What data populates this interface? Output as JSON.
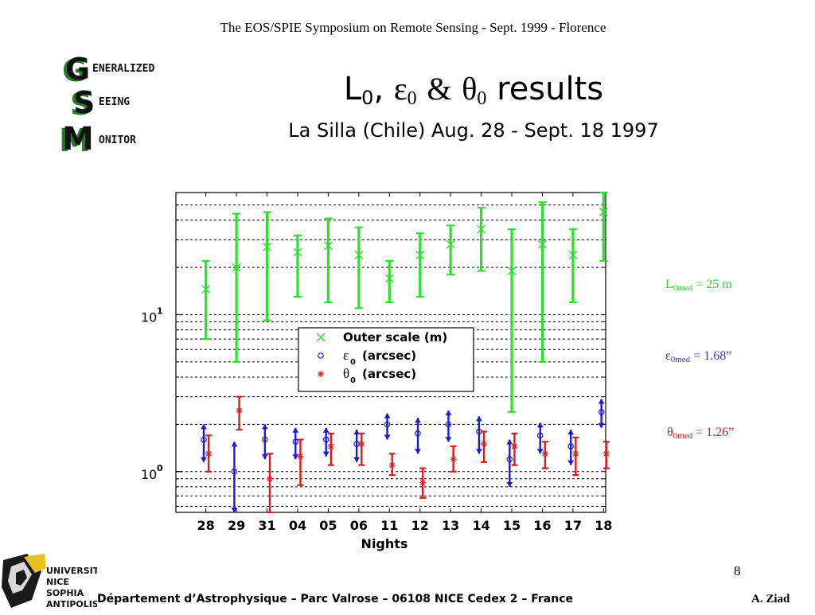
{
  "header": {
    "conference": "The EOS/SPIE Symposium on  Remote Sensing - Sept. 1999 - Florence"
  },
  "title": {
    "L": "L",
    "eps": "ε",
    "amp": "&",
    "theta": "θ",
    "sub0": "0",
    "results": "results"
  },
  "subtitle": "La Silla (Chile) Aug. 28 - Sept. 18 1997",
  "logo": {
    "line1": "ENERALIZED",
    "line2": "EEING",
    "line3": "ONITOR"
  },
  "annotations": {
    "L0": {
      "sym": "L",
      "sub": "0med",
      "val": " = 25 m"
    },
    "eps0": {
      "sym": "ε",
      "sub": "0med",
      "val": " = 1.68”"
    },
    "theta0": {
      "sym": "θ",
      "sub": "0med",
      "val": " = 1.26”"
    }
  },
  "page_number": "8",
  "footer": {
    "text": "Département d’Astrophysique – Parc Valrose – 06108 NICE Cedex 2 – France",
    "author": "A. Ziad"
  },
  "univ_logo": {
    "l1": "UNIVERSITÉ",
    "l2": "NICE",
    "l3": "SOPHIA",
    "l4": "ANTIPOLIS"
  },
  "colors": {
    "outer": "#2ee02e",
    "eps": "#1a1ad6",
    "theta": "#e01a1a"
  },
  "chart_data": {
    "type": "scatter",
    "xlabel": "Nights",
    "categories": [
      "28",
      "29",
      "31",
      "04",
      "05",
      "06",
      "11",
      "12",
      "13",
      "14",
      "15",
      "16",
      "17",
      "18"
    ],
    "y_scale": "log",
    "ylim": [
      0.55,
      60
    ],
    "y_ticks": [
      {
        "value": 1,
        "label": "10",
        "exp": "0"
      },
      {
        "value": 10,
        "label": "10",
        "exp": "1"
      }
    ],
    "grid": "horizontal dashed",
    "legend": "center",
    "series": [
      {
        "name": "Outer scale (m)",
        "marker": "x",
        "color": "#2ee02e",
        "dx": 0,
        "values": [
          14.5,
          20,
          27,
          25,
          27.5,
          24,
          17,
          24,
          28,
          35,
          19,
          28,
          24,
          45
        ],
        "low": [
          7,
          5,
          9.2,
          13,
          12,
          11,
          12,
          13,
          18,
          19,
          2.4,
          5,
          12,
          22
        ],
        "high": [
          22,
          44,
          45,
          32,
          41,
          36,
          22,
          33,
          37,
          48,
          35,
          52,
          35,
          60
        ]
      },
      {
        "name": "(arcsec)",
        "label_sym": "ε",
        "label_sub": "0",
        "marker": "o",
        "color": "#1a1ad6",
        "dx": -0.07,
        "values": [
          1.6,
          1.0,
          1.6,
          1.55,
          1.6,
          1.5,
          2.0,
          1.75,
          2.0,
          1.8,
          1.2,
          1.7,
          1.45,
          2.4
        ],
        "low": [
          1.15,
          0.55,
          1.2,
          1.2,
          1.25,
          1.15,
          1.6,
          1.3,
          1.55,
          1.3,
          0.8,
          1.3,
          1.1,
          1.9
        ],
        "high": [
          2.0,
          1.55,
          2.0,
          1.9,
          1.9,
          1.85,
          2.35,
          2.2,
          2.45,
          2.25,
          1.6,
          2.05,
          1.85,
          2.9
        ]
      },
      {
        "name": "(arcsec)",
        "label_sym": "θ",
        "label_sub": "0",
        "marker": "*",
        "color": "#e01a1a",
        "dx": 0.09,
        "values": [
          1.3,
          null,
          0.9,
          1.25,
          1.45,
          1.5,
          1.1,
          0.85,
          1.2,
          1.5,
          1.45,
          1.3,
          1.3,
          1.3
        ],
        "low": [
          1.0,
          null,
          0.55,
          0.82,
          1.1,
          1.1,
          0.95,
          0.68,
          1.0,
          1.15,
          1.1,
          1.05,
          0.95,
          1.05
        ],
        "high": [
          1.7,
          null,
          1.3,
          1.6,
          1.75,
          1.75,
          1.3,
          1.05,
          1.45,
          1.8,
          1.75,
          1.55,
          1.65,
          1.55
        ]
      }
    ],
    "theta_29_marker": {
      "value": 2.45,
      "low": 1.85,
      "high": 3.0
    }
  }
}
